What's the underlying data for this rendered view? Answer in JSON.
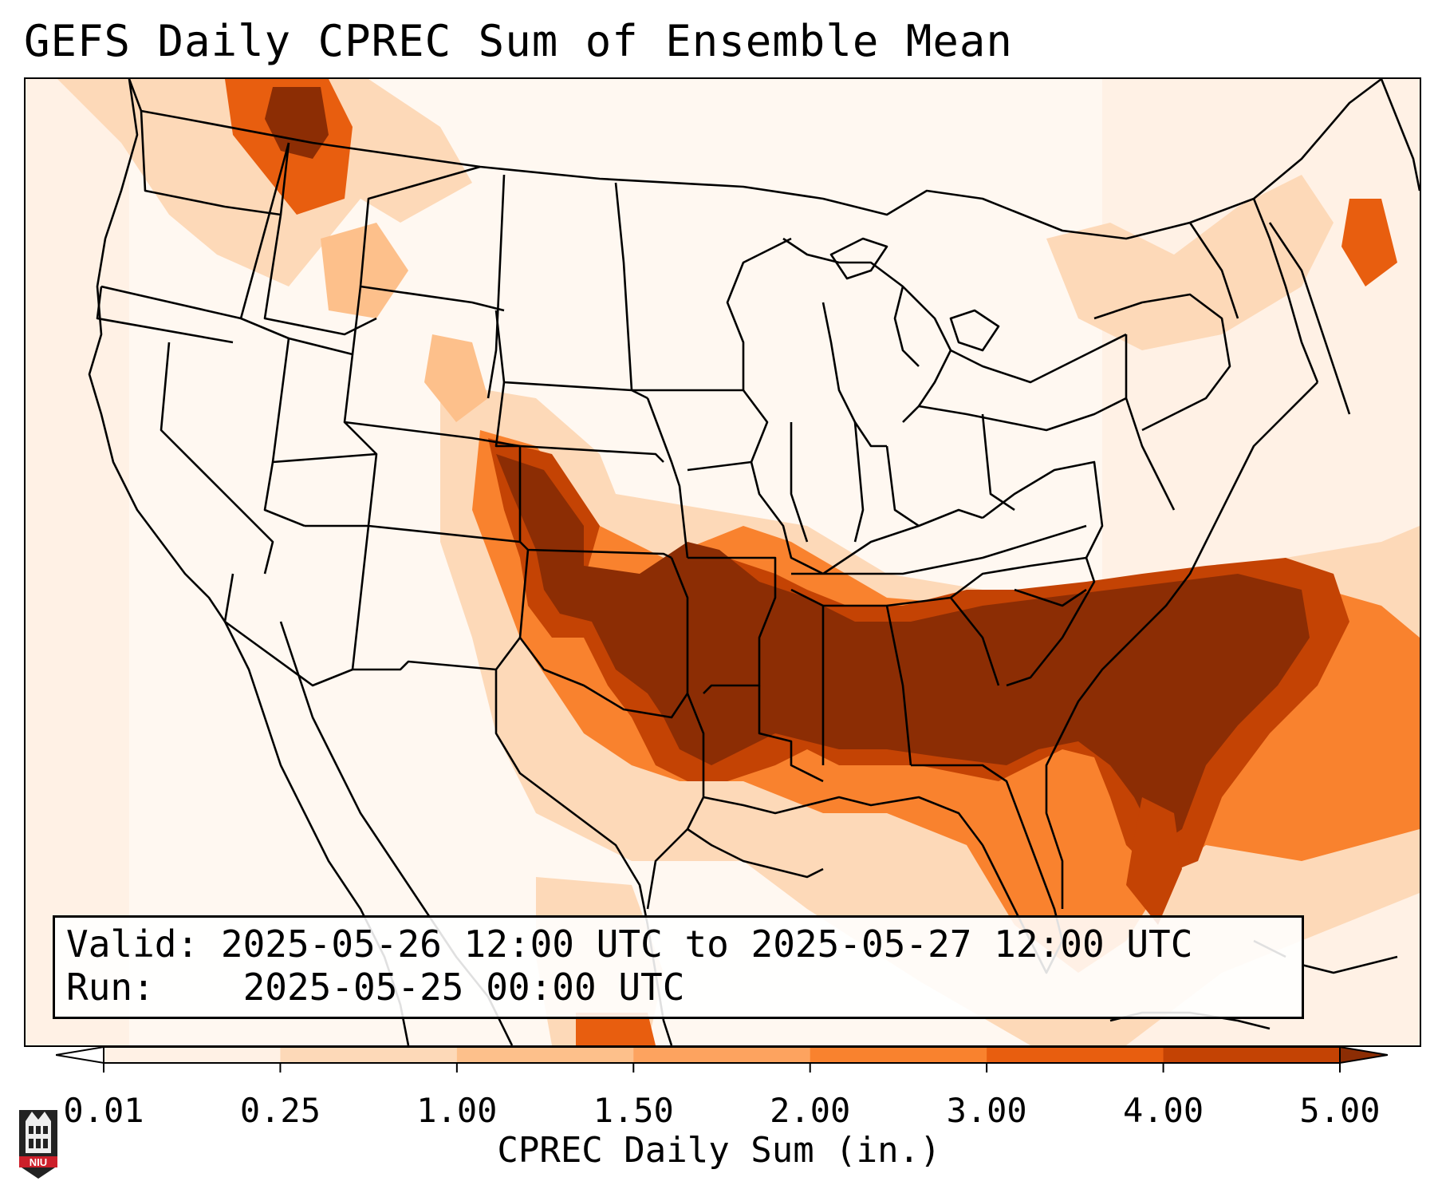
{
  "title": "GEFS Daily CPREC Sum of Ensemble Mean",
  "info": {
    "valid_label": "Valid:",
    "valid_value": "2025-05-26 12:00 UTC to 2025-05-27 12:00 UTC",
    "run_label": "Run:",
    "run_value": "2025-05-25 00:00 UTC"
  },
  "colorbar": {
    "label": "CPREC Daily Sum (in.)",
    "ticks": [
      "0.01",
      "0.25",
      "1.00",
      "1.50",
      "2.00",
      "3.00",
      "4.00",
      "5.00"
    ],
    "colors": [
      "#fff1e5",
      "#fdd9b8",
      "#fdc08b",
      "#fda35f",
      "#f9822e",
      "#e85e0f",
      "#c44304",
      "#8c2d04"
    ]
  },
  "logo": {
    "text": "NIU",
    "colors": {
      "shield": "#222222",
      "band": "#cc1f2a"
    }
  },
  "map": {
    "projection": "Lambert conformal, contiguous United States",
    "heavy_precip_color": "#8c2d04",
    "border_color": "#000000"
  }
}
